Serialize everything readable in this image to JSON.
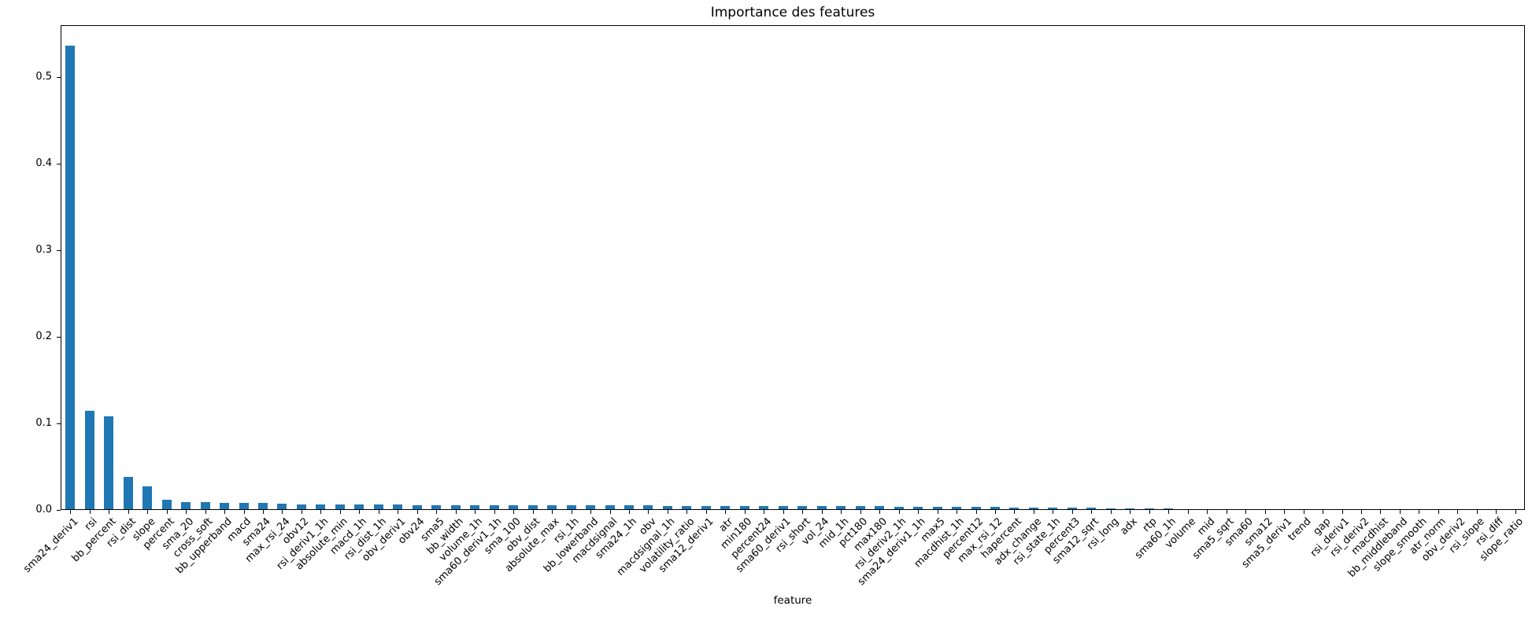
{
  "figure": {
    "background": "#ffffff"
  },
  "chart_data": {
    "type": "bar",
    "title": "Importance des features",
    "xlabel": "feature",
    "ylabel": "",
    "bar_color": "#1f77b4",
    "axis_color": "#000000",
    "grid": false,
    "legend": null,
    "ylim": [
      0,
      0.56
    ],
    "yticks": [
      "0.0",
      "0.1",
      "0.2",
      "0.3",
      "0.4",
      "0.5"
    ],
    "ytick_values": [
      0.0,
      0.1,
      0.2,
      0.3,
      0.4,
      0.5
    ],
    "x_tick_rotation": 45,
    "categories": [
      "sma24_deriv1",
      "rsi",
      "bb_percent",
      "rsi_dist",
      "slope",
      "percent",
      "sma_20",
      "cross_soft",
      "bb_upperband",
      "macd",
      "sma24",
      "max_rsi_24",
      "obv12",
      "rsi_deriv1_1h",
      "absolute_min",
      "macd_1h",
      "rsi_dist_1h",
      "obv_deriv1",
      "obv24",
      "sma5",
      "bb_width",
      "volume_1h",
      "sma60_deriv1_1h",
      "sma_100",
      "obv_dist",
      "absolute_max",
      "rsi_1h",
      "bb_lowerband",
      "macdsignal",
      "sma24_1h",
      "obv",
      "macdsignal_1h",
      "volatility_ratio",
      "sma12_deriv1",
      "atr",
      "min180",
      "percent24",
      "sma60_deriv1",
      "rsi_short",
      "vol_24",
      "mid_1h",
      "pct180",
      "max180",
      "rsi_deriv2_1h",
      "sma24_deriv1_1h",
      "max5",
      "macdhist_1h",
      "percent12",
      "max_rsi_12",
      "hapercent",
      "adx_change",
      "rsi_state_1h",
      "percent3",
      "sma12_sqrt",
      "rsi_long",
      "adx",
      "rtp",
      "sma60_1h",
      "volume",
      "mid",
      "sma5_sqrt",
      "sma60",
      "sma12",
      "sma5_deriv1",
      "trend",
      "gap",
      "rsi_deriv1",
      "rsi_deriv2",
      "macdhist",
      "bb_middleband",
      "slope_smooth",
      "atr_norm",
      "obv_deriv2",
      "rsi_slope",
      "rsi_diff",
      "slope_ratio"
    ],
    "values": [
      0.535,
      0.114,
      0.107,
      0.037,
      0.026,
      0.011,
      0.008,
      0.008,
      0.007,
      0.007,
      0.007,
      0.006,
      0.0055,
      0.0055,
      0.0055,
      0.0055,
      0.005,
      0.005,
      0.0045,
      0.0045,
      0.0045,
      0.0045,
      0.0045,
      0.0045,
      0.0045,
      0.0045,
      0.0045,
      0.0045,
      0.0045,
      0.0045,
      0.0045,
      0.0035,
      0.0035,
      0.0035,
      0.0035,
      0.0035,
      0.0035,
      0.0035,
      0.0035,
      0.0035,
      0.0035,
      0.0035,
      0.0035,
      0.003,
      0.003,
      0.003,
      0.0025,
      0.0025,
      0.0025,
      0.002,
      0.002,
      0.002,
      0.0018,
      0.0015,
      0.0013,
      0.0012,
      0.001,
      0.001,
      0.0004,
      0.0003,
      0.0002,
      0.0002,
      0.0002,
      0.0001,
      0.0001,
      0.0001,
      0.0001,
      0.0001,
      0.0001,
      0.0001,
      0.0001,
      0.0,
      0.0,
      0.0,
      0.0,
      0.0
    ]
  }
}
